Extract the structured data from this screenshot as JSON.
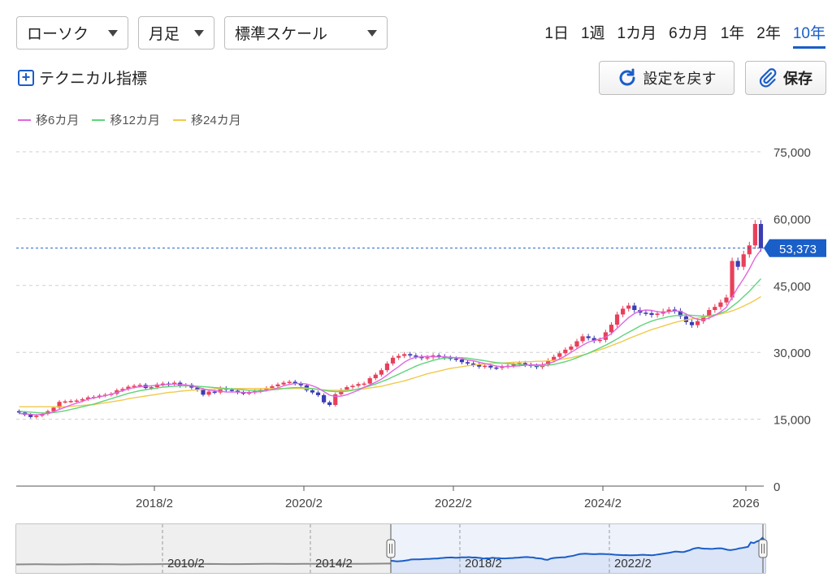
{
  "controls": {
    "chart_type": "ローソク",
    "period": "月足",
    "scale": "標準スケール",
    "ranges": [
      "1日",
      "1週",
      "1カ月",
      "6カ月",
      "1年",
      "2年",
      "10年"
    ],
    "active_range": "10年",
    "technical_label": "テクニカル指標",
    "reset_label": "設定を戻す",
    "save_label": "保存"
  },
  "colors": {
    "up": "#e8405a",
    "down": "#3c3cb4",
    "accent": "#1a5ec8",
    "ma6": "#e066e0",
    "ma12": "#5fd47a",
    "ma24": "#f2c94c"
  },
  "chart_data": {
    "type": "candlestick",
    "legend": [
      {
        "name": "移6カ月",
        "color": "#e066e0"
      },
      {
        "name": "移12カ月",
        "color": "#5fd47a"
      },
      {
        "name": "移24カ月",
        "color": "#f2c94c"
      }
    ],
    "y_ticks": [
      0,
      15000,
      30000,
      45000,
      60000,
      75000
    ],
    "y_tick_labels": [
      "0",
      "15,000",
      "30,000",
      "45,000",
      "60,000",
      "75,000"
    ],
    "ylim": [
      0,
      79000
    ],
    "x_ticks": [
      "2018/2",
      "2020/2",
      "2022/2",
      "2024/2",
      "2026"
    ],
    "x_range": [
      "2016/4",
      "2026/3"
    ],
    "current_value": 53373,
    "current_label": "53,373",
    "grid": true,
    "close_series": [
      16500,
      16000,
      15500,
      15800,
      16200,
      16800,
      17600,
      18900,
      19000,
      19100,
      19200,
      19500,
      19900,
      20000,
      20300,
      20500,
      20700,
      21500,
      21800,
      22300,
      22500,
      22700,
      22000,
      22200,
      22800,
      23000,
      22800,
      23200,
      22500,
      22700,
      22100,
      21600,
      20500,
      21200,
      21000,
      22000,
      21600,
      21400,
      21000,
      20800,
      21000,
      21300,
      21600,
      22000,
      22400,
      22800,
      23200,
      23400,
      23000,
      22600,
      21500,
      21000,
      20400,
      18800,
      18200,
      20600,
      21600,
      22200,
      22500,
      22900,
      23000,
      24200,
      25000,
      26000,
      27500,
      28800,
      29200,
      29600,
      29300,
      29000,
      28700,
      28900,
      29300,
      29100,
      28800,
      28600,
      28400,
      27800,
      27500,
      27200,
      26800,
      27000,
      26600,
      26500,
      26800,
      27000,
      27300,
      27600,
      27200,
      27000,
      26700,
      27300,
      28200,
      29000,
      29800,
      30600,
      31300,
      32500,
      33600,
      33200,
      32600,
      32800,
      34500,
      36200,
      38500,
      39800,
      40500,
      39500,
      38900,
      38800,
      38400,
      38700,
      39200,
      39600,
      39300,
      38100,
      36800,
      36100,
      37000,
      38000,
      39500,
      40200,
      41200,
      42300,
      50500,
      49200,
      52000,
      54000,
      58800,
      53373
    ],
    "ma6_series": [
      16300,
      16200,
      16100,
      16000,
      16100,
      16300,
      16700,
      17200,
      17700,
      18200,
      18600,
      19000,
      19500,
      19800,
      20000,
      20300,
      20600,
      21000,
      21400,
      21800,
      22100,
      22300,
      22400,
      22500,
      22600,
      22700,
      22800,
      22900,
      22800,
      22700,
      22500,
      22200,
      21800,
      21500,
      21400,
      21300,
      21100,
      21100,
      21100,
      21000,
      21000,
      21100,
      21200,
      21400,
      21700,
      22000,
      22500,
      22800,
      23000,
      23000,
      22900,
      22500,
      22000,
      21200,
      20400,
      20100,
      20200,
      20500,
      21000,
      21500,
      22200,
      22700,
      23300,
      24000,
      24900,
      25900,
      26800,
      27800,
      28500,
      28900,
      29000,
      29100,
      29000,
      29000,
      29000,
      28900,
      28800,
      28600,
      28300,
      28100,
      27800,
      27500,
      27200,
      26900,
      26800,
      26800,
      26900,
      27000,
      27100,
      27200,
      27200,
      27200,
      27500,
      27900,
      28500,
      29200,
      30000,
      30800,
      31600,
      32300,
      32700,
      33000,
      33400,
      34200,
      35400,
      36600,
      37800,
      38700,
      39300,
      39500,
      39400,
      39100,
      39000,
      39100,
      39300,
      39200,
      38600,
      37900,
      37400,
      37300,
      37700,
      38300,
      39100,
      40100,
      42400,
      44600,
      46500,
      48700,
      51200,
      53000
    ],
    "ma12_series": [
      16800,
      16700,
      16600,
      16500,
      16400,
      16400,
      16500,
      16700,
      16900,
      17200,
      17500,
      17800,
      18100,
      18400,
      18800,
      19200,
      19600,
      20000,
      20400,
      20800,
      21100,
      21400,
      21600,
      21800,
      22000,
      22200,
      22300,
      22400,
      22500,
      22500,
      22500,
      22400,
      22300,
      22200,
      22100,
      22000,
      21900,
      21800,
      21700,
      21600,
      21500,
      21500,
      21500,
      21500,
      21600,
      21700,
      21900,
      22000,
      22100,
      22100,
      22000,
      21900,
      21700,
      21500,
      21300,
      21200,
      21200,
      21300,
      21500,
      21800,
      22100,
      22500,
      22900,
      23400,
      23900,
      24500,
      25100,
      25700,
      26300,
      26900,
      27400,
      27800,
      28200,
      28500,
      28700,
      28800,
      28800,
      28800,
      28700,
      28500,
      28300,
      28100,
      27900,
      27700,
      27600,
      27500,
      27400,
      27300,
      27200,
      27100,
      27000,
      27000,
      27100,
      27300,
      27600,
      27900,
      28300,
      28800,
      29300,
      29800,
      30400,
      31000,
      31600,
      32300,
      33000,
      33800,
      34500,
      35200,
      35900,
      36500,
      37000,
      37400,
      37700,
      38000,
      38200,
      38300,
      38400,
      38300,
      38200,
      38100,
      38200,
      38400,
      38800,
      39300,
      40300,
      41300,
      42500,
      43700,
      45100,
      46500
    ],
    "ma24_series": [
      17800,
      17800,
      17800,
      17800,
      17800,
      17800,
      17800,
      17800,
      17800,
      17900,
      18000,
      18100,
      18200,
      18300,
      18500,
      18700,
      18900,
      19100,
      19300,
      19600,
      19800,
      20000,
      20200,
      20400,
      20600,
      20800,
      21000,
      21100,
      21300,
      21400,
      21500,
      21600,
      21700,
      21700,
      21800,
      21800,
      21800,
      21800,
      21900,
      21900,
      21900,
      21900,
      21900,
      21900,
      21900,
      21900,
      21900,
      21900,
      21900,
      21900,
      21800,
      21800,
      21700,
      21600,
      21500,
      21500,
      21500,
      21500,
      21600,
      21700,
      21800,
      22000,
      22200,
      22400,
      22700,
      23000,
      23300,
      23600,
      24000,
      24400,
      24800,
      25200,
      25500,
      25800,
      26100,
      26400,
      26600,
      26800,
      27000,
      27100,
      27300,
      27400,
      27500,
      27600,
      27600,
      27700,
      27800,
      27800,
      27900,
      27900,
      28000,
      28000,
      28100,
      28200,
      28400,
      28600,
      28800,
      29100,
      29400,
      29800,
      30200,
      30600,
      31000,
      31500,
      32000,
      32500,
      33100,
      33600,
      34100,
      34600,
      35100,
      35500,
      35900,
      36300,
      36700,
      37000,
      37300,
      37500,
      37700,
      37900,
      38100,
      38300,
      38600,
      38900,
      39300,
      39800,
      40400,
      41000,
      41700,
      42500
    ],
    "navigator": {
      "x_labels": [
        "2010/2",
        "2014/2",
        "2018/2",
        "2022/2"
      ],
      "history_before_window": [
        9800,
        9900,
        10000,
        9900,
        9800,
        9700,
        9900,
        10100,
        10300,
        10200,
        10000,
        9800,
        9900,
        10100,
        10200,
        10400,
        10600,
        10500,
        10300,
        10400,
        10600,
        10500,
        10400,
        10300,
        10500,
        10600,
        10800,
        10900,
        10700,
        10600,
        10800,
        10900,
        11000,
        11100,
        10900,
        10800,
        10900,
        11100,
        11300,
        11400
      ]
    }
  }
}
